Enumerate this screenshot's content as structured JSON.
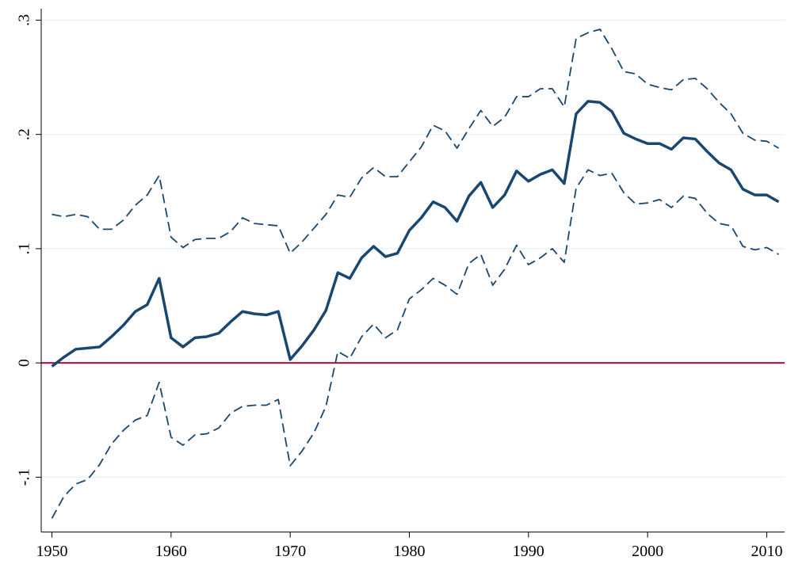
{
  "chart_data": {
    "type": "line",
    "x": [
      1950,
      1951,
      1952,
      1953,
      1954,
      1955,
      1956,
      1957,
      1958,
      1959,
      1960,
      1961,
      1962,
      1963,
      1964,
      1965,
      1966,
      1967,
      1968,
      1969,
      1970,
      1971,
      1972,
      1973,
      1974,
      1975,
      1976,
      1977,
      1978,
      1979,
      1980,
      1981,
      1982,
      1983,
      1984,
      1985,
      1986,
      1987,
      1988,
      1989,
      1990,
      1991,
      1992,
      1993,
      1994,
      1995,
      1996,
      1997,
      1998,
      1999,
      2000,
      2001,
      2002,
      2003,
      2004,
      2005,
      2006,
      2007,
      2008,
      2009,
      2010,
      2011
    ],
    "series": [
      {
        "color": "#1a476f",
        "dash": false,
        "width": 3.5,
        "values": [
          -0.003,
          0.005,
          0.012,
          0.013,
          0.014,
          0.023,
          0.033,
          0.045,
          0.051,
          0.074,
          0.022,
          0.014,
          0.022,
          0.023,
          0.026,
          0.036,
          0.045,
          0.043,
          0.042,
          0.045,
          0.003,
          0.015,
          0.029,
          0.046,
          0.079,
          0.074,
          0.092,
          0.102,
          0.093,
          0.096,
          0.116,
          0.127,
          0.141,
          0.136,
          0.124,
          0.146,
          0.158,
          0.136,
          0.147,
          0.168,
          0.159,
          0.165,
          0.169,
          0.157,
          0.218,
          0.229,
          0.228,
          0.22,
          0.201,
          0.196,
          0.192,
          0.192,
          0.187,
          0.197,
          0.196,
          0.185,
          0.175,
          0.169,
          0.152,
          0.147,
          0.147,
          0.141
        ]
      },
      {
        "color": "#1a476f",
        "dash": true,
        "width": 1.8,
        "values": [
          0.13,
          0.128,
          0.13,
          0.128,
          0.117,
          0.117,
          0.125,
          0.138,
          0.147,
          0.164,
          0.11,
          0.101,
          0.108,
          0.109,
          0.109,
          0.115,
          0.127,
          0.122,
          0.121,
          0.12,
          0.096,
          0.106,
          0.118,
          0.13,
          0.147,
          0.145,
          0.162,
          0.171,
          0.163,
          0.163,
          0.176,
          0.189,
          0.208,
          0.203,
          0.188,
          0.205,
          0.221,
          0.207,
          0.215,
          0.233,
          0.233,
          0.24,
          0.24,
          0.224,
          0.284,
          0.289,
          0.292,
          0.275,
          0.255,
          0.253,
          0.244,
          0.241,
          0.239,
          0.248,
          0.249,
          0.24,
          0.228,
          0.218,
          0.201,
          0.195,
          0.194,
          0.188
        ]
      },
      {
        "color": "#1a476f",
        "dash": true,
        "width": 1.8,
        "values": [
          -0.136,
          -0.117,
          -0.106,
          -0.102,
          -0.089,
          -0.071,
          -0.059,
          -0.05,
          -0.046,
          -0.017,
          -0.065,
          -0.072,
          -0.063,
          -0.062,
          -0.057,
          -0.044,
          -0.038,
          -0.037,
          -0.037,
          -0.032,
          -0.09,
          -0.077,
          -0.061,
          -0.038,
          0.01,
          0.004,
          0.023,
          0.034,
          0.022,
          0.029,
          0.056,
          0.064,
          0.074,
          0.068,
          0.06,
          0.087,
          0.095,
          0.068,
          0.082,
          0.103,
          0.086,
          0.092,
          0.1,
          0.088,
          0.153,
          0.169,
          0.164,
          0.166,
          0.149,
          0.139,
          0.14,
          0.143,
          0.136,
          0.146,
          0.144,
          0.131,
          0.122,
          0.12,
          0.102,
          0.099,
          0.101,
          0.095
        ]
      }
    ],
    "xlim": [
      1949.1,
      2011.5
    ],
    "xticks": [
      1950,
      1960,
      1970,
      1980,
      1990,
      2000,
      2010
    ],
    "ylim": [
      -0.148,
      0.31
    ],
    "yticks": [
      {
        "value": -0.1,
        "label": "-.1"
      },
      {
        "value": 0,
        "label": "0"
      },
      {
        "value": 0.1,
        "label": ".1"
      },
      {
        "value": 0.2,
        "label": ".2"
      },
      {
        "value": 0.3,
        "label": ".3"
      }
    ],
    "grid": true,
    "grid_color": "#eaf2f3",
    "refline": {
      "value": 0,
      "color": "#c10534"
    }
  }
}
